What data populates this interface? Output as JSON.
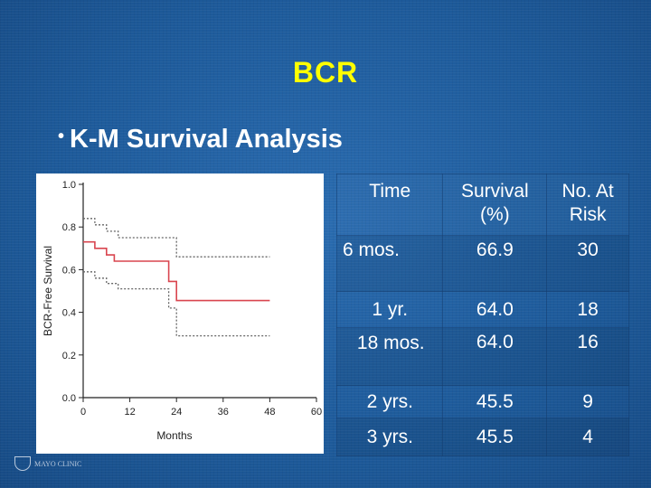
{
  "slide": {
    "title": "BCR",
    "bullet": "K-M Survival Analysis",
    "logo_text": "MAYO CLINIC"
  },
  "chart_data": {
    "type": "line",
    "xlabel": "Months",
    "ylabel": "BCR-Free Survival",
    "xlim": [
      0,
      60
    ],
    "ylim": [
      0.0,
      1.0
    ],
    "x_ticks": [
      0,
      12,
      24,
      36,
      48,
      60
    ],
    "y_ticks": [
      0.0,
      0.2,
      0.4,
      0.6,
      0.8,
      1.0
    ],
    "x_tick_labels": [
      "0",
      "12",
      "24",
      "36",
      "48",
      "60"
    ],
    "y_tick_labels": [
      "0.0",
      "0.2",
      "0.4",
      "0.6",
      "0.8",
      "1.0"
    ],
    "grid": false,
    "series": [
      {
        "kind": "estimate",
        "style": "solid",
        "color": "#d9454f",
        "points": [
          [
            0,
            0.73
          ],
          [
            3,
            0.73
          ],
          [
            3,
            0.7
          ],
          [
            6,
            0.7
          ],
          [
            6,
            0.669
          ],
          [
            8,
            0.669
          ],
          [
            8,
            0.64
          ],
          [
            22,
            0.64
          ],
          [
            22,
            0.545
          ],
          [
            24,
            0.545
          ],
          [
            24,
            0.455
          ],
          [
            48,
            0.455
          ]
        ]
      },
      {
        "kind": "upper",
        "style": "dotted",
        "color": "#666666",
        "points": [
          [
            0,
            0.84
          ],
          [
            3,
            0.84
          ],
          [
            3,
            0.81
          ],
          [
            6,
            0.81
          ],
          [
            6,
            0.78
          ],
          [
            9,
            0.78
          ],
          [
            9,
            0.75
          ],
          [
            24,
            0.75
          ],
          [
            24,
            0.66
          ],
          [
            48,
            0.66
          ]
        ]
      },
      {
        "kind": "lower",
        "style": "dotted",
        "color": "#666666",
        "points": [
          [
            0,
            0.59
          ],
          [
            3,
            0.59
          ],
          [
            3,
            0.56
          ],
          [
            6,
            0.56
          ],
          [
            6,
            0.535
          ],
          [
            9,
            0.535
          ],
          [
            9,
            0.51
          ],
          [
            22,
            0.51
          ],
          [
            22,
            0.42
          ],
          [
            24,
            0.42
          ],
          [
            24,
            0.29
          ],
          [
            48,
            0.29
          ]
        ]
      }
    ]
  },
  "table": {
    "headers": [
      "Time",
      "Survival (%)",
      "No. At Risk"
    ],
    "header_lines": [
      [
        "Time"
      ],
      [
        "Survival",
        "(%)"
      ],
      [
        "No. At",
        "Risk"
      ]
    ],
    "rows": [
      [
        "6 mos.",
        "66.9",
        "30"
      ],
      [
        "1 yr.",
        "64.0",
        "18"
      ],
      [
        "18 mos.",
        "64.0",
        "16"
      ],
      [
        "2 yrs.",
        "45.5",
        "9"
      ],
      [
        "3 yrs.",
        "45.5",
        "4"
      ]
    ]
  }
}
